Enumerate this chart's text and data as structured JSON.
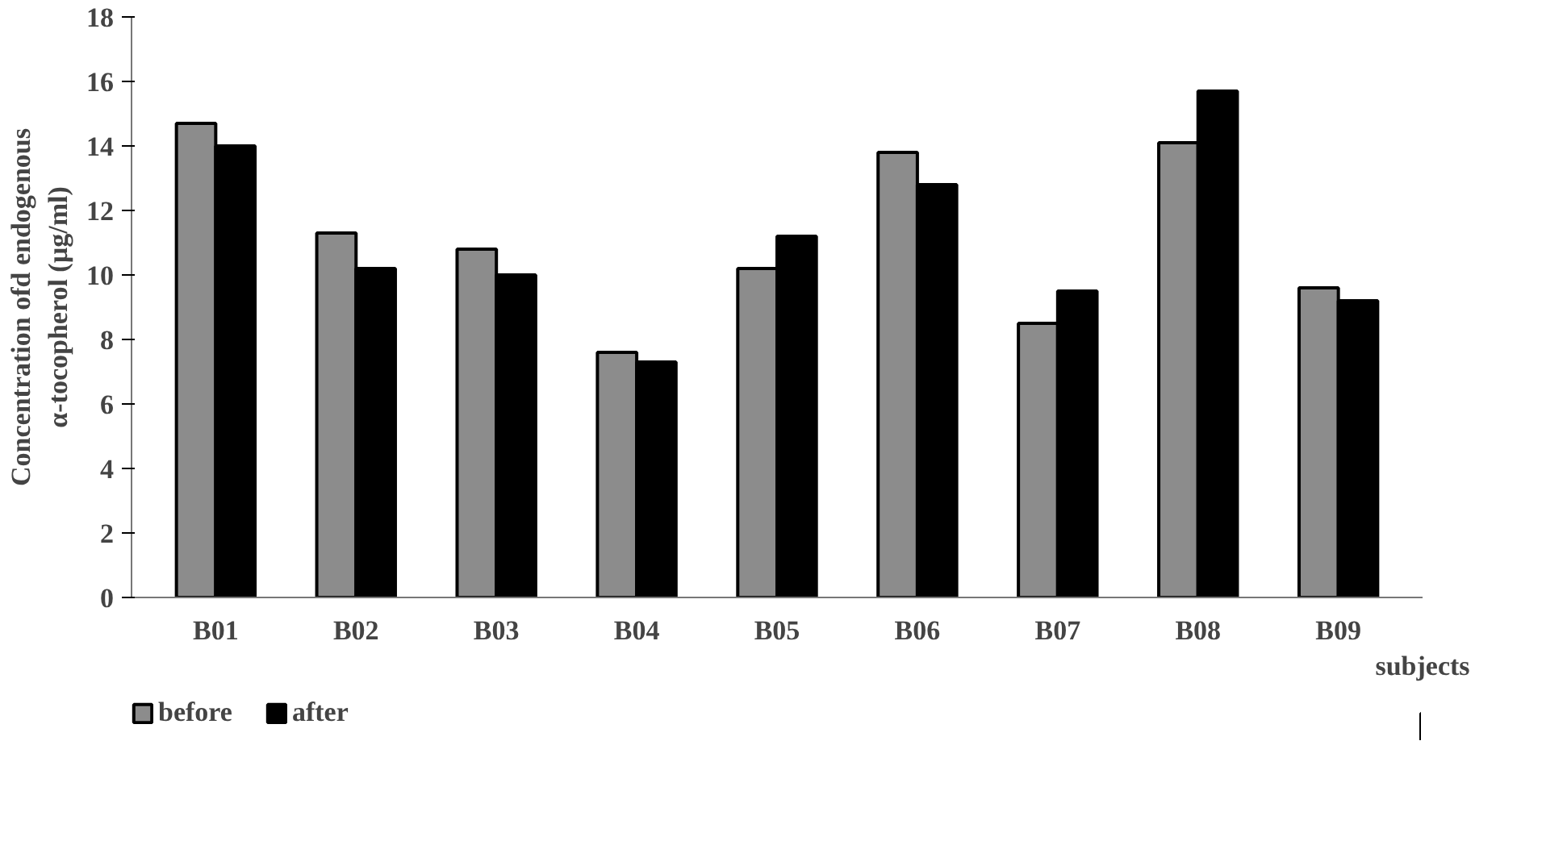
{
  "chart_data": {
    "type": "bar",
    "xlabel": "subjects",
    "ylabel": "Concentration ofd endogenous α-tocopherol (µg/ml)",
    "categories": [
      "B01",
      "B02",
      "B03",
      "B04",
      "B05",
      "B06",
      "B07",
      "B08",
      "B09"
    ],
    "series": [
      {
        "name": "before",
        "color": "#8c8c8c",
        "values": [
          14.7,
          11.3,
          10.8,
          7.6,
          10.2,
          13.8,
          8.5,
          14.1,
          9.6
        ]
      },
      {
        "name": "after",
        "color": "#000000",
        "values": [
          14.0,
          10.2,
          10.0,
          7.3,
          11.2,
          12.8,
          9.5,
          15.7,
          9.2
        ]
      }
    ],
    "ylim": [
      0,
      18
    ],
    "yticks": [
      0,
      2,
      4,
      6,
      8,
      10,
      12,
      14,
      16,
      18
    ],
    "grid": false,
    "legend": "bottom left"
  }
}
